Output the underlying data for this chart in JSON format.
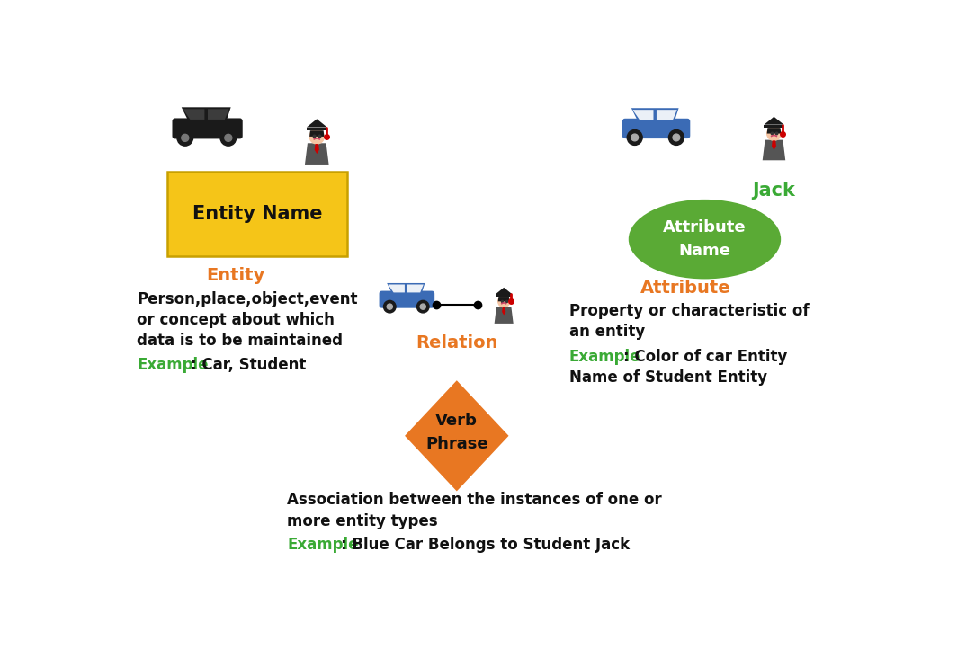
{
  "bg_color": "#ffffff",
  "entity_box_color": "#F5C518",
  "entity_box_edge": "#C8A000",
  "attr_ellipse_color": "#5aaa35",
  "relation_diamond_color": "#E87722",
  "blue_car_color": "#3B6BB5",
  "black_car_color": "#1a1a1a",
  "text_orange": "#E87722",
  "text_green": "#3aaa35",
  "text_black": "#111111",
  "text_white": "#ffffff",
  "entity_label": "Entity Name",
  "entity_title": "Entity",
  "entity_desc1": "Person,place,object,event",
  "entity_desc2": "or concept about which",
  "entity_desc3": "data is to be maintained",
  "entity_example_label": "Example",
  "entity_example_text": ": Car, Student",
  "attr_label": "Attribute\nName",
  "attr_title": "Attribute",
  "attr_jack": "Jack",
  "attr_desc1": "Property or characteristic of",
  "attr_desc2": "an entity",
  "attr_example_label": "Example",
  "attr_example_text": ": Color of car Entity",
  "attr_desc3": "Name of Student Entity",
  "relation_label": "Verb\nPhrase",
  "relation_title": "Relation",
  "relation_desc1": "Association between the instances of one or",
  "relation_desc2": "more entity types",
  "relation_example_label": "Example",
  "relation_example_text": ": Blue Car Belongs to Student Jack"
}
